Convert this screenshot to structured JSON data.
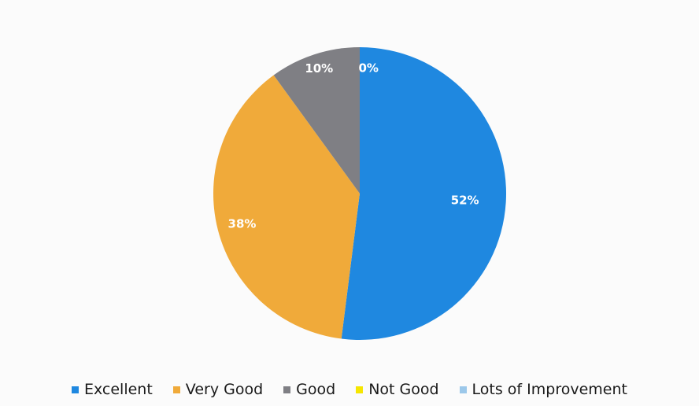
{
  "chart_data": {
    "type": "pie",
    "title": "",
    "categories": [
      "Excellent",
      "Very Good",
      "Good",
      "Not Good",
      "Lots of Improvement"
    ],
    "values": [
      52,
      38,
      10,
      0,
      0
    ],
    "data_labels": [
      "52%",
      "38%",
      "10%",
      "0%",
      ""
    ],
    "colors": [
      "#1f88e0",
      "#f0aa3a",
      "#7f7f84",
      "#f6e600",
      "#9cc8ea"
    ],
    "legend_position": "bottom"
  }
}
